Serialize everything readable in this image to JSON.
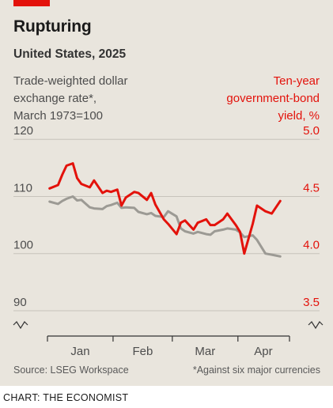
{
  "header": {
    "title": "Rupturing",
    "subtitle": "United States, 2025"
  },
  "left_axis_label": [
    "Trade-weighted dollar",
    "exchange rate*,",
    "March 1973=100"
  ],
  "right_axis_label": [
    "Ten-year",
    "government-bond",
    "yield, %"
  ],
  "footer": {
    "source": "Source: LSEG Workspace",
    "footnote": "*Against six major currencies",
    "credit": "CHART: THE ECONOMIST"
  },
  "colors": {
    "background": "#e9e5dd",
    "accent": "#e3120b",
    "dollar_line": "#9c9a94",
    "yield_line": "#e3120b",
    "gridline": "#c7c3bb",
    "text": "#4d4d4d"
  },
  "chart_data": {
    "type": "line",
    "title": "Rupturing",
    "subtitle": "United States, 2025",
    "x_type": "date",
    "xlim": [
      "2025-01-01",
      "2025-04-25"
    ],
    "x_tick_labels": [
      "Jan",
      "Feb",
      "Mar",
      "Apr"
    ],
    "x_tick_dates": [
      "2025-01-01",
      "2025-02-01",
      "2025-03-01",
      "2025-04-01"
    ],
    "axes": {
      "left": {
        "label": "Trade-weighted dollar exchange rate*, March 1973=100",
        "ylim": [
          87.5,
          121
        ],
        "ticks": [
          90,
          100,
          110,
          120
        ],
        "axis_break": true
      },
      "right": {
        "label": "Ten-year government-bond yield, %",
        "ylim": [
          3.375,
          5.05
        ],
        "ticks": [
          3.5,
          4.0,
          4.5,
          5.0
        ],
        "tick_labels": [
          "3.5",
          "4.0",
          "4.5",
          "5.0"
        ],
        "axis_break": true
      }
    },
    "grid": true,
    "series": [
      {
        "name": "Trade-weighted dollar exchange rate",
        "axis": "left",
        "x": [
          "2025-01-02",
          "2025-01-06",
          "2025-01-08",
          "2025-01-10",
          "2025-01-13",
          "2025-01-15",
          "2025-01-17",
          "2025-01-21",
          "2025-01-23",
          "2025-01-27",
          "2025-01-29",
          "2025-01-31",
          "2025-02-03",
          "2025-02-05",
          "2025-02-07",
          "2025-02-11",
          "2025-02-13",
          "2025-02-17",
          "2025-02-19",
          "2025-02-21",
          "2025-02-25",
          "2025-02-27",
          "2025-03-03",
          "2025-03-05",
          "2025-03-07",
          "2025-03-11",
          "2025-03-13",
          "2025-03-17",
          "2025-03-19",
          "2025-03-21",
          "2025-03-25",
          "2025-03-27",
          "2025-03-31",
          "2025-04-02",
          "2025-04-04",
          "2025-04-08",
          "2025-04-10",
          "2025-04-14",
          "2025-04-17",
          "2025-04-21"
        ],
        "values": [
          109.1,
          108.7,
          109.2,
          109.6,
          110.0,
          109.3,
          109.4,
          108.1,
          107.9,
          107.8,
          108.3,
          108.5,
          108.9,
          108.0,
          108.1,
          108.0,
          107.3,
          106.9,
          107.1,
          106.6,
          106.4,
          107.4,
          106.5,
          104.4,
          103.9,
          103.5,
          103.8,
          103.4,
          103.3,
          103.9,
          104.2,
          104.4,
          104.2,
          103.7,
          102.9,
          103.2,
          102.4,
          100.0,
          99.8,
          99.5
        ]
      },
      {
        "name": "Ten-year government-bond yield",
        "axis": "right",
        "x": [
          "2025-01-02",
          "2025-01-06",
          "2025-01-08",
          "2025-01-10",
          "2025-01-13",
          "2025-01-15",
          "2025-01-17",
          "2025-01-21",
          "2025-01-23",
          "2025-01-27",
          "2025-01-29",
          "2025-01-31",
          "2025-02-03",
          "2025-02-05",
          "2025-02-07",
          "2025-02-11",
          "2025-02-13",
          "2025-02-17",
          "2025-02-19",
          "2025-02-21",
          "2025-02-25",
          "2025-02-27",
          "2025-03-03",
          "2025-03-05",
          "2025-03-07",
          "2025-03-11",
          "2025-03-13",
          "2025-03-17",
          "2025-03-19",
          "2025-03-21",
          "2025-03-25",
          "2025-03-27",
          "2025-03-31",
          "2025-04-02",
          "2025-04-04",
          "2025-04-08",
          "2025-04-10",
          "2025-04-14",
          "2025-04-17",
          "2025-04-21"
        ],
        "values": [
          4.57,
          4.6,
          4.69,
          4.77,
          4.79,
          4.66,
          4.61,
          4.58,
          4.64,
          4.53,
          4.55,
          4.54,
          4.56,
          4.42,
          4.49,
          4.54,
          4.53,
          4.47,
          4.53,
          4.43,
          4.3,
          4.26,
          4.17,
          4.27,
          4.29,
          4.21,
          4.27,
          4.3,
          4.25,
          4.25,
          4.3,
          4.35,
          4.25,
          4.19,
          4.0,
          4.26,
          4.42,
          4.37,
          4.35,
          4.46
        ]
      }
    ]
  }
}
